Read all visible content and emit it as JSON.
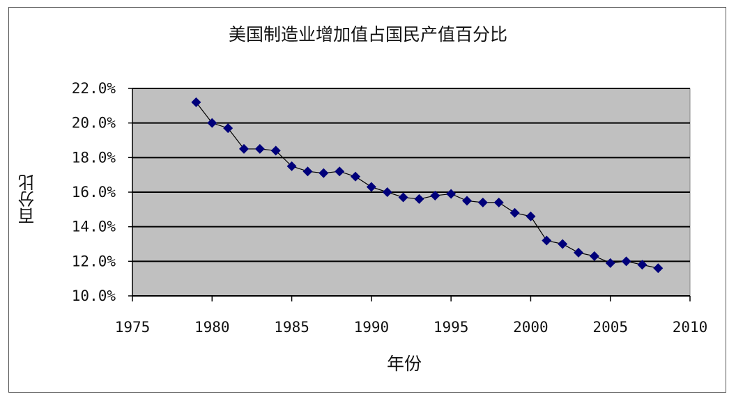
{
  "chart_data": {
    "type": "line",
    "title": "美国制造业增加值占国民产值百分比",
    "xlabel": "年份",
    "ylabel": "百分比",
    "xlim": [
      1975,
      2010
    ],
    "ylim": [
      10,
      22
    ],
    "x_ticks": [
      "1975",
      "1980",
      "1985",
      "1990",
      "1995",
      "2000",
      "2005",
      "2010"
    ],
    "y_ticks": [
      "10.0%",
      "12.0%",
      "14.0%",
      "16.0%",
      "18.0%",
      "20.0%",
      "22.0%"
    ],
    "grid": "horizontal",
    "legend": "none",
    "plot_background": "#c0c0c0",
    "series_color": "#00007a",
    "marker": "diamond",
    "x": [
      1979,
      1980,
      1981,
      1982,
      1983,
      1984,
      1985,
      1986,
      1987,
      1988,
      1989,
      1990,
      1991,
      1992,
      1993,
      1994,
      1995,
      1996,
      1997,
      1998,
      1999,
      2000,
      2001,
      2002,
      2003,
      2004,
      2005,
      2006,
      2007,
      2008
    ],
    "values": [
      21.2,
      20.0,
      19.7,
      18.5,
      18.5,
      18.4,
      17.5,
      17.2,
      17.1,
      17.2,
      16.9,
      16.3,
      16.0,
      15.7,
      15.6,
      15.8,
      15.9,
      15.5,
      15.4,
      15.4,
      14.8,
      14.6,
      13.2,
      13.0,
      12.5,
      12.3,
      11.9,
      12.0,
      11.8,
      11.6
    ]
  }
}
